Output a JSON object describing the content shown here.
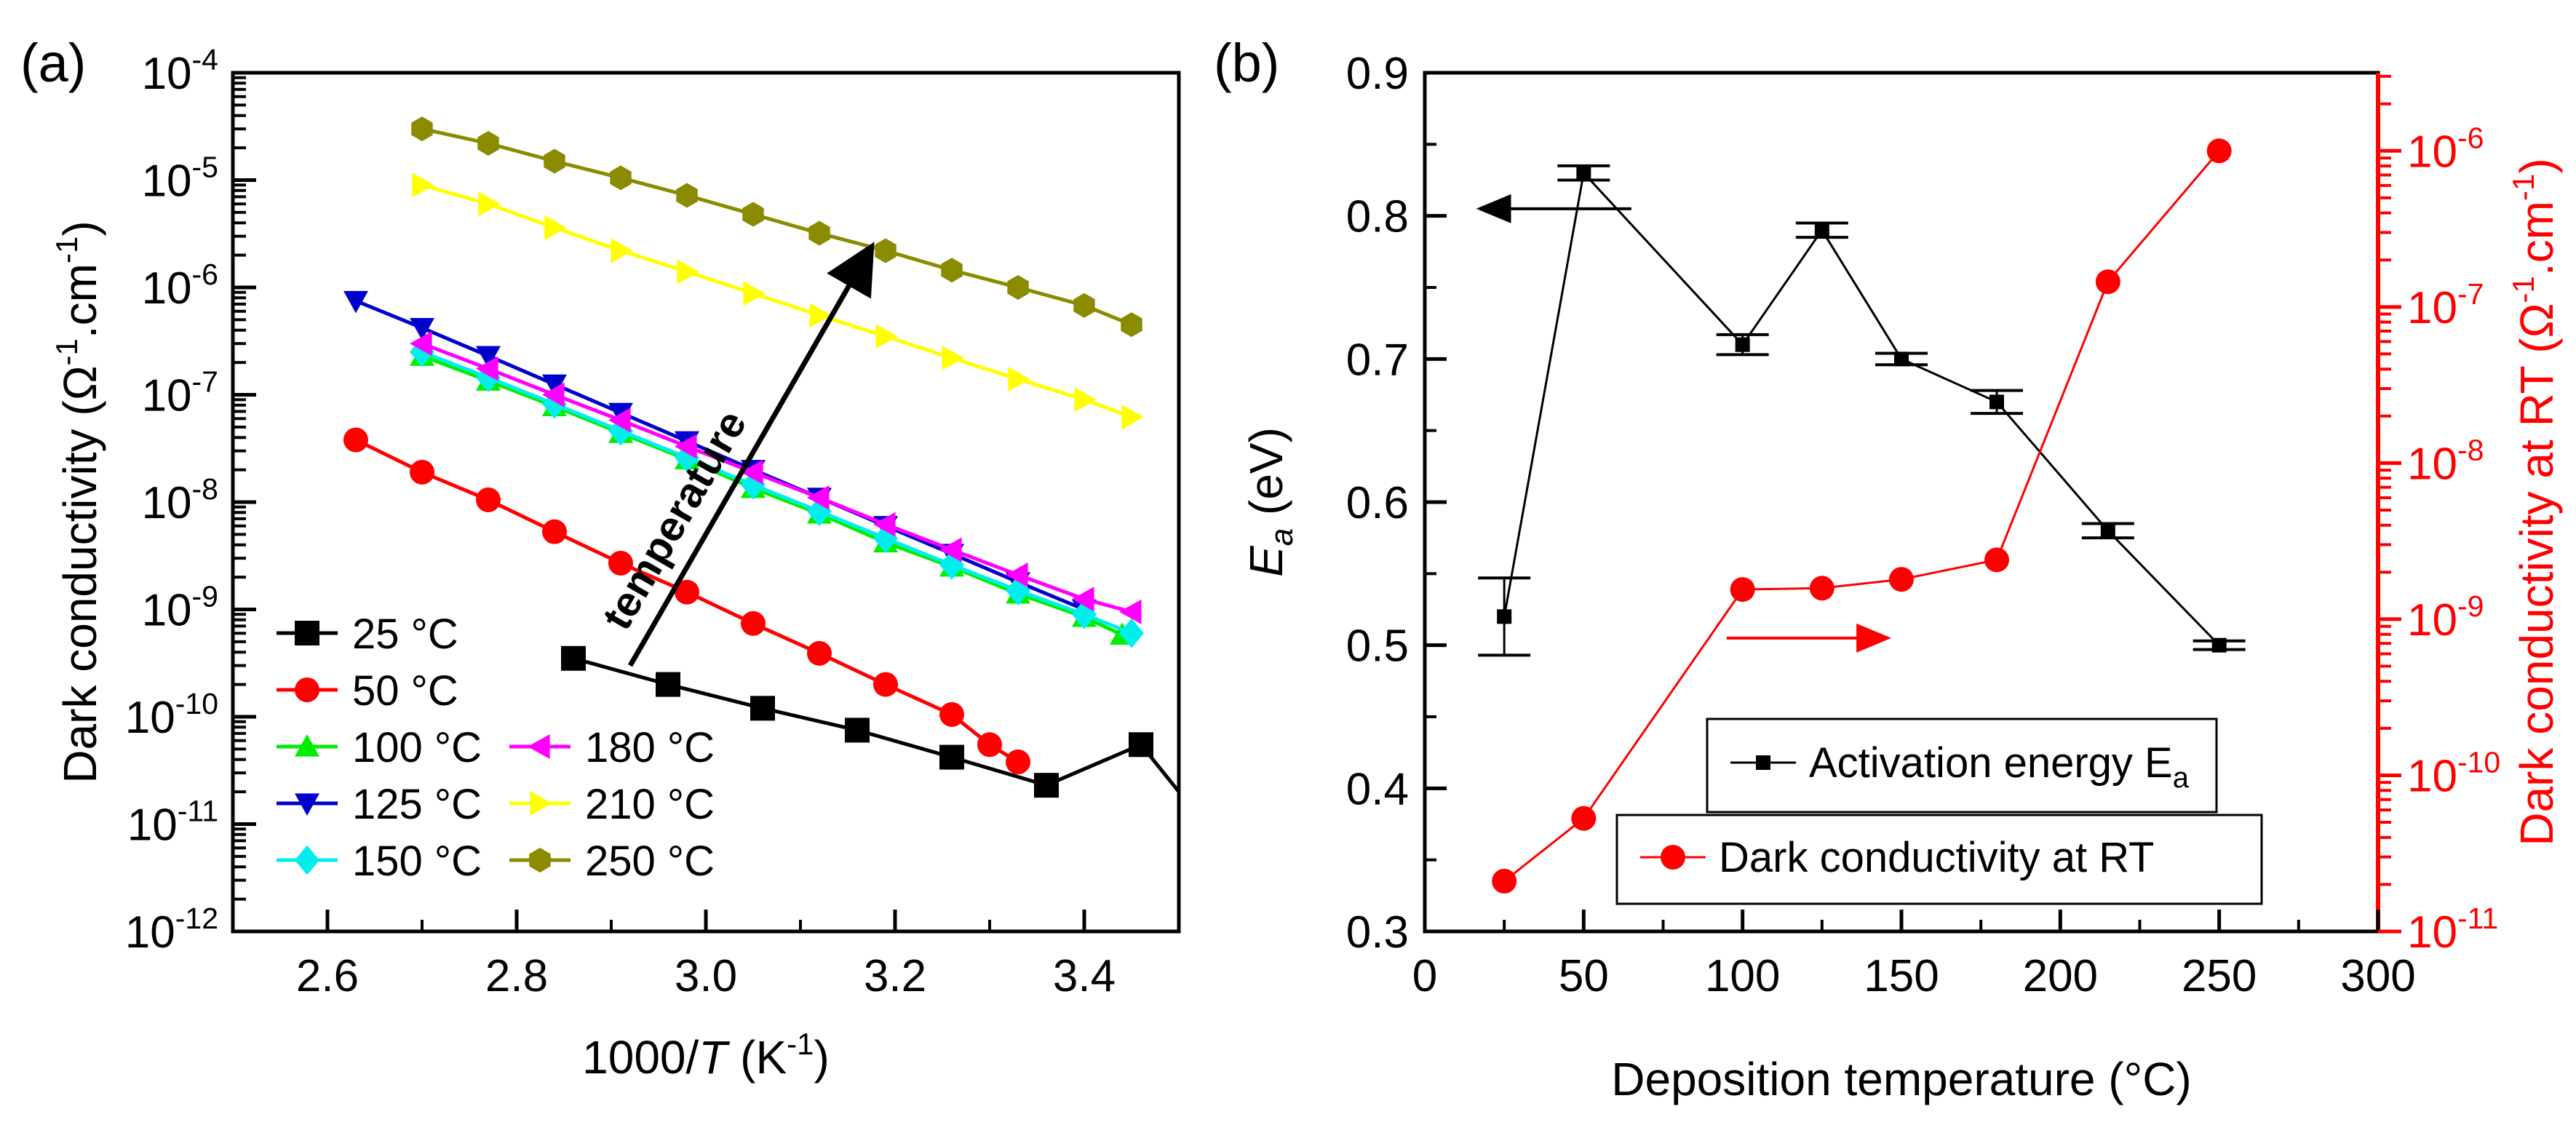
{
  "chart_data": [
    {
      "type": "line",
      "panel_label": "(a)",
      "xlabel_main": "1000/",
      "xlabel_var": "T",
      "xlabel_unit": " (K",
      "xlabel_sup": "-1",
      "xlabel_close": ")",
      "ylabel_main": "Dark conductivity (Ω",
      "ylabel_sup1": "-1",
      "ylabel_mid": ".cm",
      "ylabel_sup2": "-1",
      "ylabel_close": ")",
      "xlim": [
        2.5,
        3.5
      ],
      "ylim_log10": [
        -12,
        -4
      ],
      "yscale": "log",
      "x_ticks": [
        {
          "v": 2.6,
          "label": "2.6"
        },
        {
          "v": 2.8,
          "label": "2.8"
        },
        {
          "v": 3.0,
          "label": "3.0"
        },
        {
          "v": 3.2,
          "label": "3.2"
        },
        {
          "v": 3.4,
          "label": "3.4"
        }
      ],
      "y_ticks": [
        {
          "exp": -12,
          "base": "10",
          "sup": "-12"
        },
        {
          "exp": -11,
          "base": "10",
          "sup": "-11"
        },
        {
          "exp": -10,
          "base": "10",
          "sup": "-10"
        },
        {
          "exp": -9,
          "base": "10",
          "sup": "-9"
        },
        {
          "exp": -8,
          "base": "10",
          "sup": "-8"
        },
        {
          "exp": -7,
          "base": "10",
          "sup": "-7"
        },
        {
          "exp": -6,
          "base": "10",
          "sup": "-6"
        },
        {
          "exp": -5,
          "base": "10",
          "sup": "-5"
        },
        {
          "exp": -4,
          "base": "10",
          "sup": "-4"
        }
      ],
      "series": [
        {
          "name": "25 °C",
          "color": "#000000",
          "marker": "square",
          "x": [
            2.86,
            2.96,
            3.06,
            3.16,
            3.26,
            3.36,
            3.46,
            3.5
          ],
          "y": [
            3.5e-10,
            2e-10,
            1.2e-10,
            7.5e-11,
            4.2e-11,
            2.3e-11,
            5.5e-11,
            2e-11
          ]
        },
        {
          "name": "50 °C",
          "color": "#ff0000",
          "marker": "circle",
          "x": [
            2.63,
            2.7,
            2.77,
            2.84,
            2.91,
            2.98,
            3.05,
            3.12,
            3.19,
            3.26,
            3.3,
            3.33
          ],
          "y": [
            3.8e-08,
            1.9e-08,
            1.05e-08,
            5.3e-09,
            2.7e-09,
            1.45e-09,
            7.4e-10,
            3.9e-10,
            2e-10,
            1.05e-10,
            5.5e-11,
            3.8e-11
          ]
        },
        {
          "name": "100 °C",
          "color": "#00ee00",
          "marker": "triangle-up",
          "x": [
            2.7,
            2.77,
            2.84,
            2.91,
            2.98,
            3.05,
            3.12,
            3.19,
            3.26,
            3.33,
            3.4,
            3.44
          ],
          "y": [
            2.3e-07,
            1.35e-07,
            7.8e-08,
            4.4e-08,
            2.5e-08,
            1.35e-08,
            7.8e-09,
            4.2e-09,
            2.5e-09,
            1.4e-09,
            8.5e-10,
            5.8e-10
          ]
        },
        {
          "name": "125 °C",
          "color": "#0000cc",
          "marker": "triangle-down",
          "x": [
            2.63,
            2.7,
            2.77,
            2.84,
            2.91,
            2.98,
            3.05,
            3.12,
            3.19,
            3.26,
            3.33,
            3.4
          ],
          "y": [
            7.5e-07,
            4.2e-07,
            2.3e-07,
            1.25e-07,
            6.8e-08,
            3.7e-08,
            2e-08,
            1.1e-08,
            6e-09,
            3.3e-09,
            1.8e-09,
            1e-09
          ]
        },
        {
          "name": "150 °C",
          "color": "#00eeee",
          "marker": "diamond",
          "x": [
            2.7,
            2.77,
            2.84,
            2.91,
            2.98,
            3.05,
            3.12,
            3.19,
            3.26,
            3.33,
            3.4,
            3.45
          ],
          "y": [
            2.5e-07,
            1.45e-07,
            8.2e-08,
            4.6e-08,
            2.6e-08,
            1.45e-08,
            8.2e-09,
            4.6e-09,
            2.6e-09,
            1.5e-09,
            9e-10,
            6e-10
          ]
        },
        {
          "name": "180 °C",
          "color": "#ff00ff",
          "marker": "triangle-left",
          "x": [
            2.7,
            2.77,
            2.84,
            2.91,
            2.98,
            3.05,
            3.12,
            3.19,
            3.26,
            3.33,
            3.4,
            3.45
          ],
          "y": [
            3e-07,
            1.75e-07,
            1e-07,
            5.8e-08,
            3.3e-08,
            1.9e-08,
            1.1e-08,
            6.2e-09,
            3.6e-09,
            2.1e-09,
            1.25e-09,
            9.5e-10
          ]
        },
        {
          "name": "210 °C",
          "color": "#ffff00",
          "marker": "triangle-right",
          "x": [
            2.7,
            2.77,
            2.84,
            2.91,
            2.98,
            3.05,
            3.12,
            3.19,
            3.26,
            3.33,
            3.4,
            3.45
          ],
          "y": [
            9e-06,
            6e-06,
            3.6e-06,
            2.2e-06,
            1.4e-06,
            8.8e-07,
            5.5e-07,
            3.5e-07,
            2.2e-07,
            1.4e-07,
            9e-08,
            6.2e-08
          ]
        },
        {
          "name": "250 °C",
          "color": "#8b8b00",
          "marker": "hexagon",
          "x": [
            2.7,
            2.77,
            2.84,
            2.91,
            2.98,
            3.05,
            3.12,
            3.19,
            3.26,
            3.33,
            3.4,
            3.45
          ],
          "y": [
            3e-05,
            2.2e-05,
            1.5e-05,
            1.05e-05,
            7.2e-06,
            4.8e-06,
            3.2e-06,
            2.2e-06,
            1.45e-06,
            1e-06,
            6.8e-07,
            4.5e-07
          ]
        }
      ],
      "annotation": {
        "text": "temperature",
        "from": {
          "x": 2.92,
          "y": 3e-10
        },
        "to": {
          "x": 3.17,
          "y": 2e-06
        }
      },
      "legend_placement": "bottom-left, two columns"
    },
    {
      "type": "line",
      "panel_label": "(b)",
      "xlabel": "Deposition temperature (°C)",
      "ylabel_left_italic": "E",
      "ylabel_left_sub": "a",
      "ylabel_left_rest": " (eV)",
      "ylabel_right_main": "Dark conductivity at RT (Ω",
      "ylabel_right_sup1": "-1",
      "ylabel_right_mid": ".cm",
      "ylabel_right_sup2": "-1",
      "ylabel_right_close": ")",
      "xlim": [
        0,
        300
      ],
      "ylim_left": [
        0.3,
        0.9
      ],
      "ylim_right_log10": [
        -11,
        -5.5
      ],
      "x_ticks": [
        {
          "v": 0,
          "label": "0"
        },
        {
          "v": 50,
          "label": "50"
        },
        {
          "v": 100,
          "label": "100"
        },
        {
          "v": 150,
          "label": "150"
        },
        {
          "v": 200,
          "label": "200"
        },
        {
          "v": 250,
          "label": "250"
        },
        {
          "v": 300,
          "label": "300"
        }
      ],
      "y_left_ticks": [
        {
          "v": 0.3,
          "label": "0.3"
        },
        {
          "v": 0.4,
          "label": "0.4"
        },
        {
          "v": 0.5,
          "label": "0.5"
        },
        {
          "v": 0.6,
          "label": "0.6"
        },
        {
          "v": 0.7,
          "label": "0.7"
        },
        {
          "v": 0.8,
          "label": "0.8"
        },
        {
          "v": 0.9,
          "label": "0.9"
        }
      ],
      "y_right_ticks": [
        {
          "exp": -11,
          "base": "10",
          "sup": "-11"
        },
        {
          "exp": -10,
          "base": "10",
          "sup": "-10"
        },
        {
          "exp": -9,
          "base": "10",
          "sup": "-9"
        },
        {
          "exp": -8,
          "base": "10",
          "sup": "-8"
        },
        {
          "exp": -7,
          "base": "10",
          "sup": "-7"
        },
        {
          "exp": -6,
          "base": "10",
          "sup": "-6"
        }
      ],
      "series": [
        {
          "name": "Activation energy E",
          "name_sub": "a",
          "axis": "left",
          "color": "#000000",
          "marker": "square",
          "x": [
            25,
            50,
            100,
            125,
            150,
            180,
            215,
            250
          ],
          "y": [
            0.52,
            0.83,
            0.71,
            0.79,
            0.7,
            0.67,
            0.58,
            0.5
          ],
          "err": [
            0.027,
            0.005,
            0.007,
            0.005,
            0.004,
            0.008,
            0.005,
            0.003
          ]
        },
        {
          "name": "Dark conductivity at RT",
          "axis": "right",
          "color": "#ff0000",
          "marker": "circle",
          "x": [
            25,
            50,
            100,
            125,
            150,
            180,
            215,
            250
          ],
          "y": [
            2.1e-11,
            5.3e-11,
            1.55e-09,
            1.58e-09,
            1.8e-09,
            2.4e-09,
            1.45e-07,
            1e-06
          ]
        }
      ],
      "axis_arrows": [
        {
          "points_to": "left",
          "x_from": 65,
          "x_to": 18,
          "y": 0.805
        },
        {
          "points_to": "right",
          "x_from": 95,
          "x_to": 145,
          "y": 0.505
        }
      ],
      "legend_placement": "bottom-center"
    }
  ]
}
